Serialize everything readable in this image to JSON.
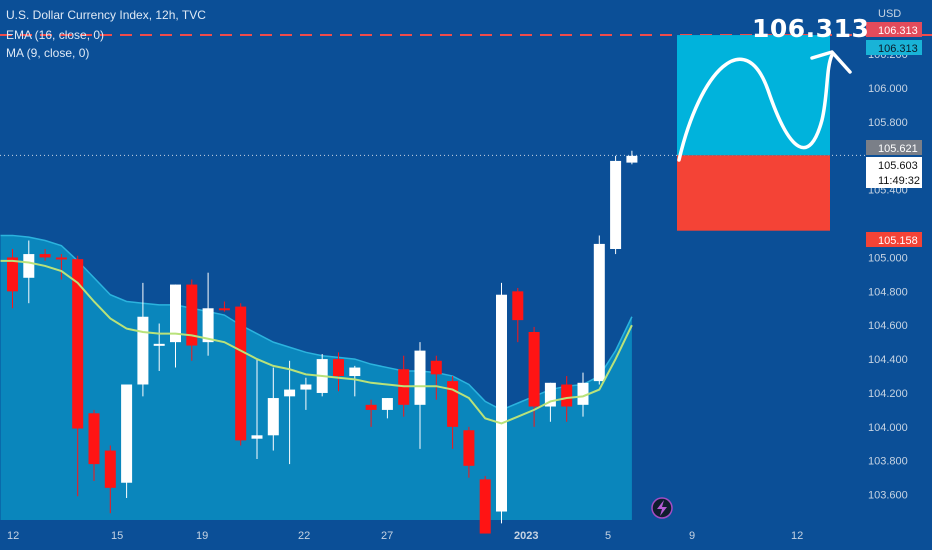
{
  "header": {
    "title": "U.S. Dollar Currency Index, 12h, TVC",
    "indicators": [
      "EMA (16, close, 0)",
      "MA (9, close, 0)"
    ],
    "currency": "USD"
  },
  "target_price": "106.313",
  "price_labels": {
    "target_red": "106.313",
    "target_cyan": "106.313",
    "last_close": "105.621",
    "current": "105.603",
    "countdown": "11:49:32",
    "stop": "105.158"
  },
  "colors": {
    "background": "#0b4f97",
    "bullish": "#ffffff",
    "bearish": "#ff1414",
    "ema_fill": "#0a8fc2",
    "ma_line": "#b9e27a",
    "target_box": "#00b3dc",
    "stop_box": "#f44336"
  },
  "chart_data": {
    "type": "candlestick",
    "timeframe": "12h",
    "ylim": [
      103.45,
      106.52
    ],
    "y_ticks": [
      "106.200",
      "106.000",
      "105.800",
      "105.400",
      "105.000",
      "104.800",
      "104.600",
      "104.400",
      "104.200",
      "104.000",
      "103.800",
      "103.600"
    ],
    "x_ticks": [
      "12",
      "15",
      "19",
      "22",
      "27",
      "2023",
      "5",
      "9",
      "12"
    ],
    "candles": [
      {
        "o": 105.0,
        "h": 105.05,
        "l": 104.7,
        "c": 104.8
      },
      {
        "o": 104.88,
        "h": 105.1,
        "l": 104.73,
        "c": 105.02
      },
      {
        "o": 105.02,
        "h": 105.05,
        "l": 104.98,
        "c": 105.0
      },
      {
        "o": 105.0,
        "h": 105.02,
        "l": 104.87,
        "c": 104.99
      },
      {
        "o": 104.99,
        "h": 105.01,
        "l": 103.59,
        "c": 103.99
      },
      {
        "o": 104.08,
        "h": 104.1,
        "l": 103.68,
        "c": 103.78
      },
      {
        "o": 103.86,
        "h": 103.89,
        "l": 103.49,
        "c": 103.64
      },
      {
        "o": 103.67,
        "h": 104.25,
        "l": 103.58,
        "c": 104.25
      },
      {
        "o": 104.25,
        "h": 104.85,
        "l": 104.18,
        "c": 104.65
      },
      {
        "o": 104.48,
        "h": 104.61,
        "l": 104.33,
        "c": 104.49
      },
      {
        "o": 104.5,
        "h": 104.84,
        "l": 104.35,
        "c": 104.84
      },
      {
        "o": 104.84,
        "h": 104.87,
        "l": 104.39,
        "c": 104.48
      },
      {
        "o": 104.5,
        "h": 104.91,
        "l": 104.42,
        "c": 104.7
      },
      {
        "o": 104.7,
        "h": 104.74,
        "l": 104.68,
        "c": 104.69
      },
      {
        "o": 104.71,
        "h": 104.73,
        "l": 103.89,
        "c": 103.92
      },
      {
        "o": 103.93,
        "h": 104.4,
        "l": 103.81,
        "c": 103.95
      },
      {
        "o": 103.95,
        "h": 104.35,
        "l": 103.86,
        "c": 104.17
      },
      {
        "o": 104.18,
        "h": 104.39,
        "l": 103.78,
        "c": 104.22
      },
      {
        "o": 104.22,
        "h": 104.29,
        "l": 104.1,
        "c": 104.25
      },
      {
        "o": 104.2,
        "h": 104.43,
        "l": 104.18,
        "c": 104.4
      },
      {
        "o": 104.4,
        "h": 104.44,
        "l": 104.21,
        "c": 104.3
      },
      {
        "o": 104.3,
        "h": 104.36,
        "l": 104.18,
        "c": 104.35
      },
      {
        "o": 104.13,
        "h": 104.16,
        "l": 104.0,
        "c": 104.1
      },
      {
        "o": 104.1,
        "h": 104.17,
        "l": 104.05,
        "c": 104.17
      },
      {
        "o": 104.34,
        "h": 104.42,
        "l": 104.06,
        "c": 104.13
      },
      {
        "o": 104.13,
        "h": 104.5,
        "l": 103.87,
        "c": 104.45
      },
      {
        "o": 104.39,
        "h": 104.42,
        "l": 104.16,
        "c": 104.31
      },
      {
        "o": 104.27,
        "h": 104.3,
        "l": 103.87,
        "c": 104.0
      },
      {
        "o": 103.98,
        "h": 104.0,
        "l": 103.7,
        "c": 103.77
      },
      {
        "o": 103.69,
        "h": 103.71,
        "l": 103.37,
        "c": 103.37
      },
      {
        "o": 103.5,
        "h": 104.85,
        "l": 103.43,
        "c": 104.78
      },
      {
        "o": 104.8,
        "h": 104.82,
        "l": 104.5,
        "c": 104.63
      },
      {
        "o": 104.56,
        "h": 104.59,
        "l": 104.0,
        "c": 104.12
      },
      {
        "o": 104.12,
        "h": 104.26,
        "l": 104.03,
        "c": 104.26
      },
      {
        "o": 104.25,
        "h": 104.3,
        "l": 104.03,
        "c": 104.12
      },
      {
        "o": 104.13,
        "h": 104.32,
        "l": 104.06,
        "c": 104.26
      },
      {
        "o": 104.27,
        "h": 105.13,
        "l": 104.25,
        "c": 105.08
      },
      {
        "o": 105.05,
        "h": 105.6,
        "l": 105.02,
        "c": 105.57
      },
      {
        "o": 105.56,
        "h": 105.63,
        "l": 105.55,
        "c": 105.6
      }
    ],
    "ma": [
      104.98,
      104.97,
      104.95,
      104.92,
      104.85,
      104.74,
      104.64,
      104.58,
      104.56,
      104.55,
      104.55,
      104.54,
      104.52,
      104.5,
      104.45,
      104.4,
      104.36,
      104.34,
      104.31,
      104.3,
      104.29,
      104.28,
      104.26,
      104.25,
      104.24,
      104.24,
      104.24,
      104.22,
      104.17,
      104.05,
      104.02,
      104.06,
      104.1,
      104.15,
      104.17,
      104.18,
      104.22,
      104.4,
      104.6
    ],
    "ema": [
      105.13,
      105.12,
      105.1,
      105.07,
      104.98,
      104.88,
      104.78,
      104.74,
      104.73,
      104.72,
      104.72,
      104.7,
      104.68,
      104.66,
      104.6,
      104.55,
      104.5,
      104.47,
      104.44,
      104.42,
      104.41,
      104.4,
      104.37,
      104.35,
      104.33,
      104.33,
      104.32,
      104.3,
      104.25,
      104.15,
      104.1,
      104.14,
      104.18,
      104.22,
      104.24,
      104.25,
      104.3,
      104.45,
      104.65
    ],
    "last_price": 105.621,
    "target_price": 106.313,
    "entry_price": 105.603,
    "stop_price": 105.158
  }
}
